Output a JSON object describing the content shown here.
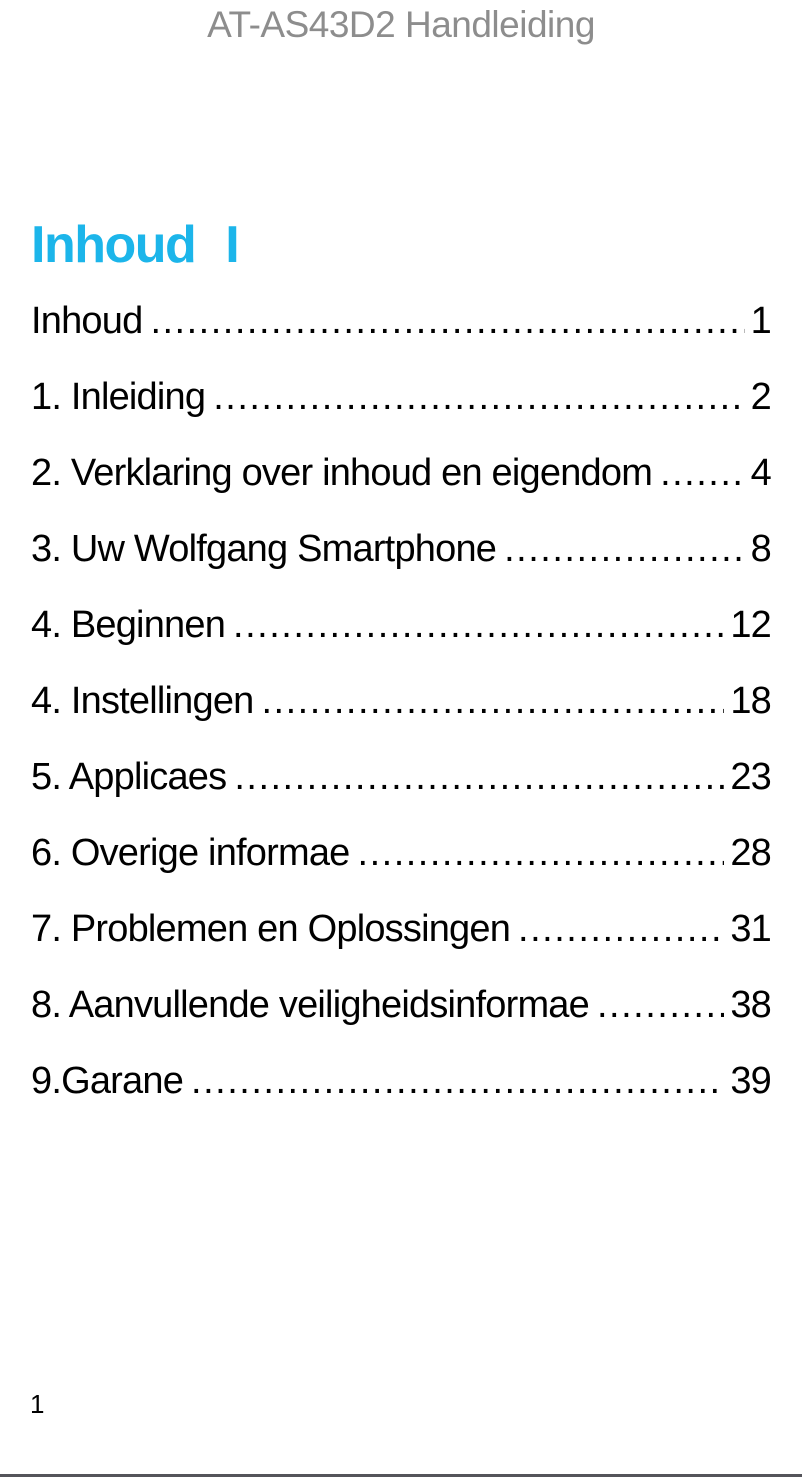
{
  "header": {
    "title": "AT-AS43D2 Handleiding"
  },
  "section": {
    "heading": "Inhoud",
    "heading_mark": "I"
  },
  "toc": {
    "entries": [
      {
        "title": "Inhoud",
        "page": "1"
      },
      {
        "title": "1. Inleiding",
        "page": "2"
      },
      {
        "title": "2. Verklaring over inhoud en eigendom",
        "page": "4"
      },
      {
        "title": "3. Uw Wolfgang Smartphone",
        "page": "8"
      },
      {
        "title": "4. Beginnen",
        "page": "12"
      },
      {
        "title": "4. Instellingen",
        "page": "18"
      },
      {
        "title": "5. Applicaes",
        "page": "23"
      },
      {
        "title": "6. Overige informae",
        "page": "28"
      },
      {
        "title": "7. Problemen en Oplossingen",
        "page": "31"
      },
      {
        "title": "8. Aanvullende veiligheidsinformae",
        "page": "38"
      },
      {
        "title": "9.Garane",
        "page": "39"
      }
    ]
  },
  "footer": {
    "page_number": "1"
  },
  "colors": {
    "accent_cyan": "#1cb5ea",
    "header_gray": "#8d8d8d",
    "rule_gray": "#54545a",
    "text": "#000000"
  }
}
